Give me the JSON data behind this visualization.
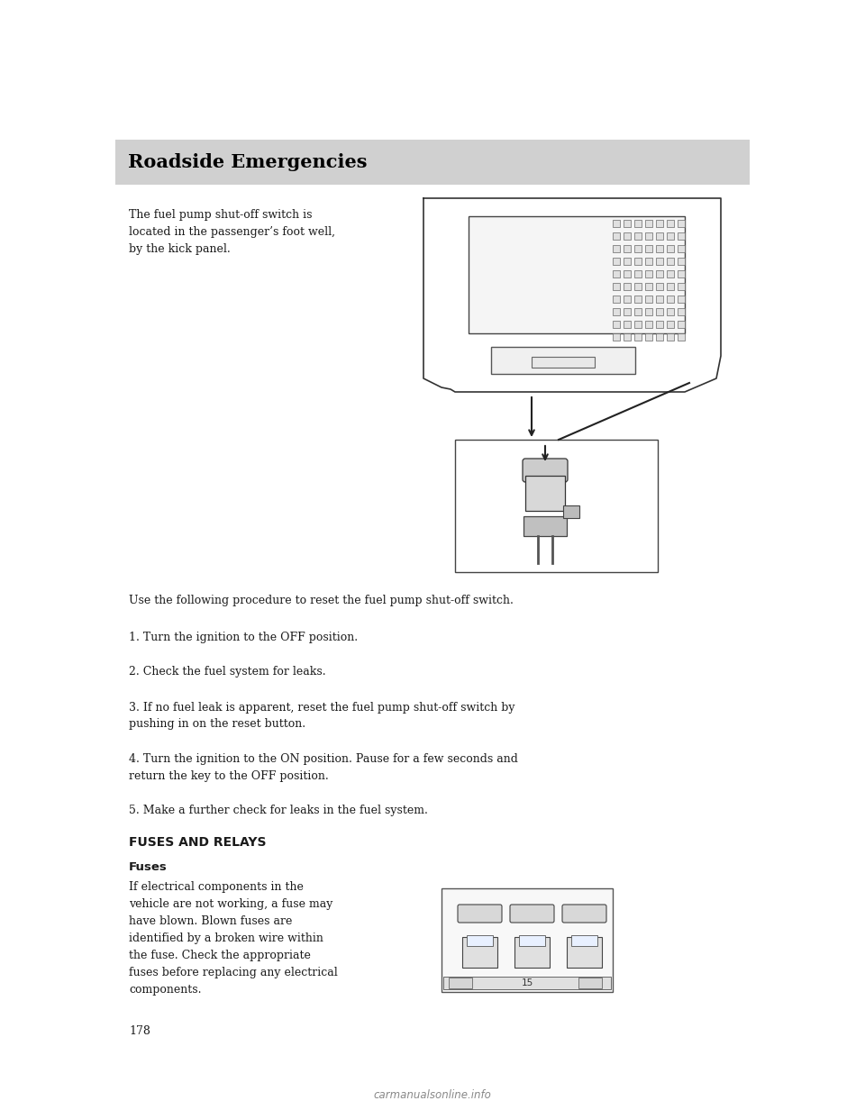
{
  "page_bg": "#ffffff",
  "header_bg": "#d0d0d0",
  "header_text": "Roadside Emergencies",
  "header_text_color": "#000000",
  "header_fontsize": 15,
  "body_text_color": "#1a1a1a",
  "body_fontsize": 9.0,
  "intro_text_left": "The fuel pump shut-off switch is\nlocated in the passenger’s foot well,\nby the kick panel.",
  "procedure_intro": "Use the following procedure to reset the fuel pump shut-off switch.",
  "steps": [
    "1. Turn the ignition to the OFF position.",
    "2. Check the fuel system for leaks.",
    "3. If no fuel leak is apparent, reset the fuel pump shut-off switch by\npushing in on the reset button.",
    "4. Turn the ignition to the ON position. Pause for a few seconds and\nreturn the key to the OFF position.",
    "5. Make a further check for leaks in the fuel system."
  ],
  "fuses_heading": "FUSES AND RELAYS",
  "fuses_subheading": "Fuses",
  "fuses_text": "If electrical components in the\nvehicle are not working, a fuse may\nhave blown. Blown fuses are\nidentified by a broken wire within\nthe fuse. Check the appropriate\nfuses before replacing any electrical\ncomponents.",
  "page_number": "178",
  "watermark": "carmanualsonline.info"
}
